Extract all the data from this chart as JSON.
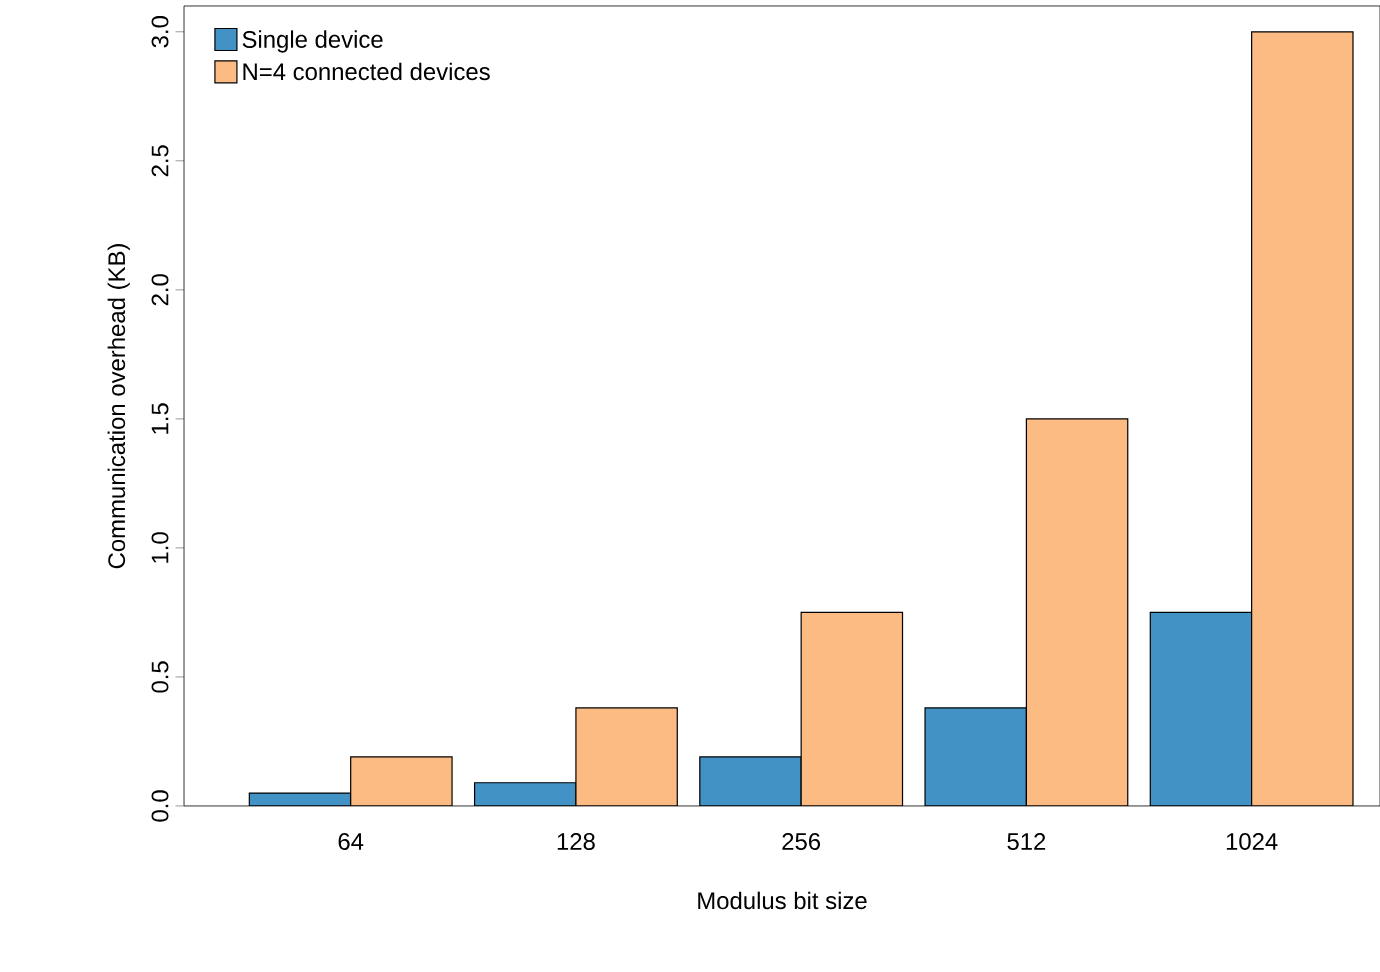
{
  "chart_data": {
    "type": "bar",
    "xlabel": "Modulus bit size",
    "ylabel": "Communication overhead (KB)",
    "categories": [
      "64",
      "128",
      "256",
      "512",
      "1024"
    ],
    "series": [
      {
        "name": "Single device",
        "color": "#4292c6",
        "values": [
          0.05,
          0.09,
          0.19,
          0.38,
          0.75
        ]
      },
      {
        "name": "N=4 connected devices",
        "color": "#fdbb84",
        "values": [
          0.19,
          0.38,
          0.75,
          1.5,
          3.0
        ]
      }
    ],
    "ylim": [
      0,
      3.1
    ],
    "yticks": [
      {
        "value": 0,
        "label": "0.0"
      },
      0.5,
      {
        "value": 1,
        "label": "1.0"
      },
      1.5,
      {
        "value": 2,
        "label": "2.0"
      },
      2.5,
      {
        "value": 3,
        "label": "3.0"
      }
    ],
    "legend": "top left",
    "grid": false
  }
}
